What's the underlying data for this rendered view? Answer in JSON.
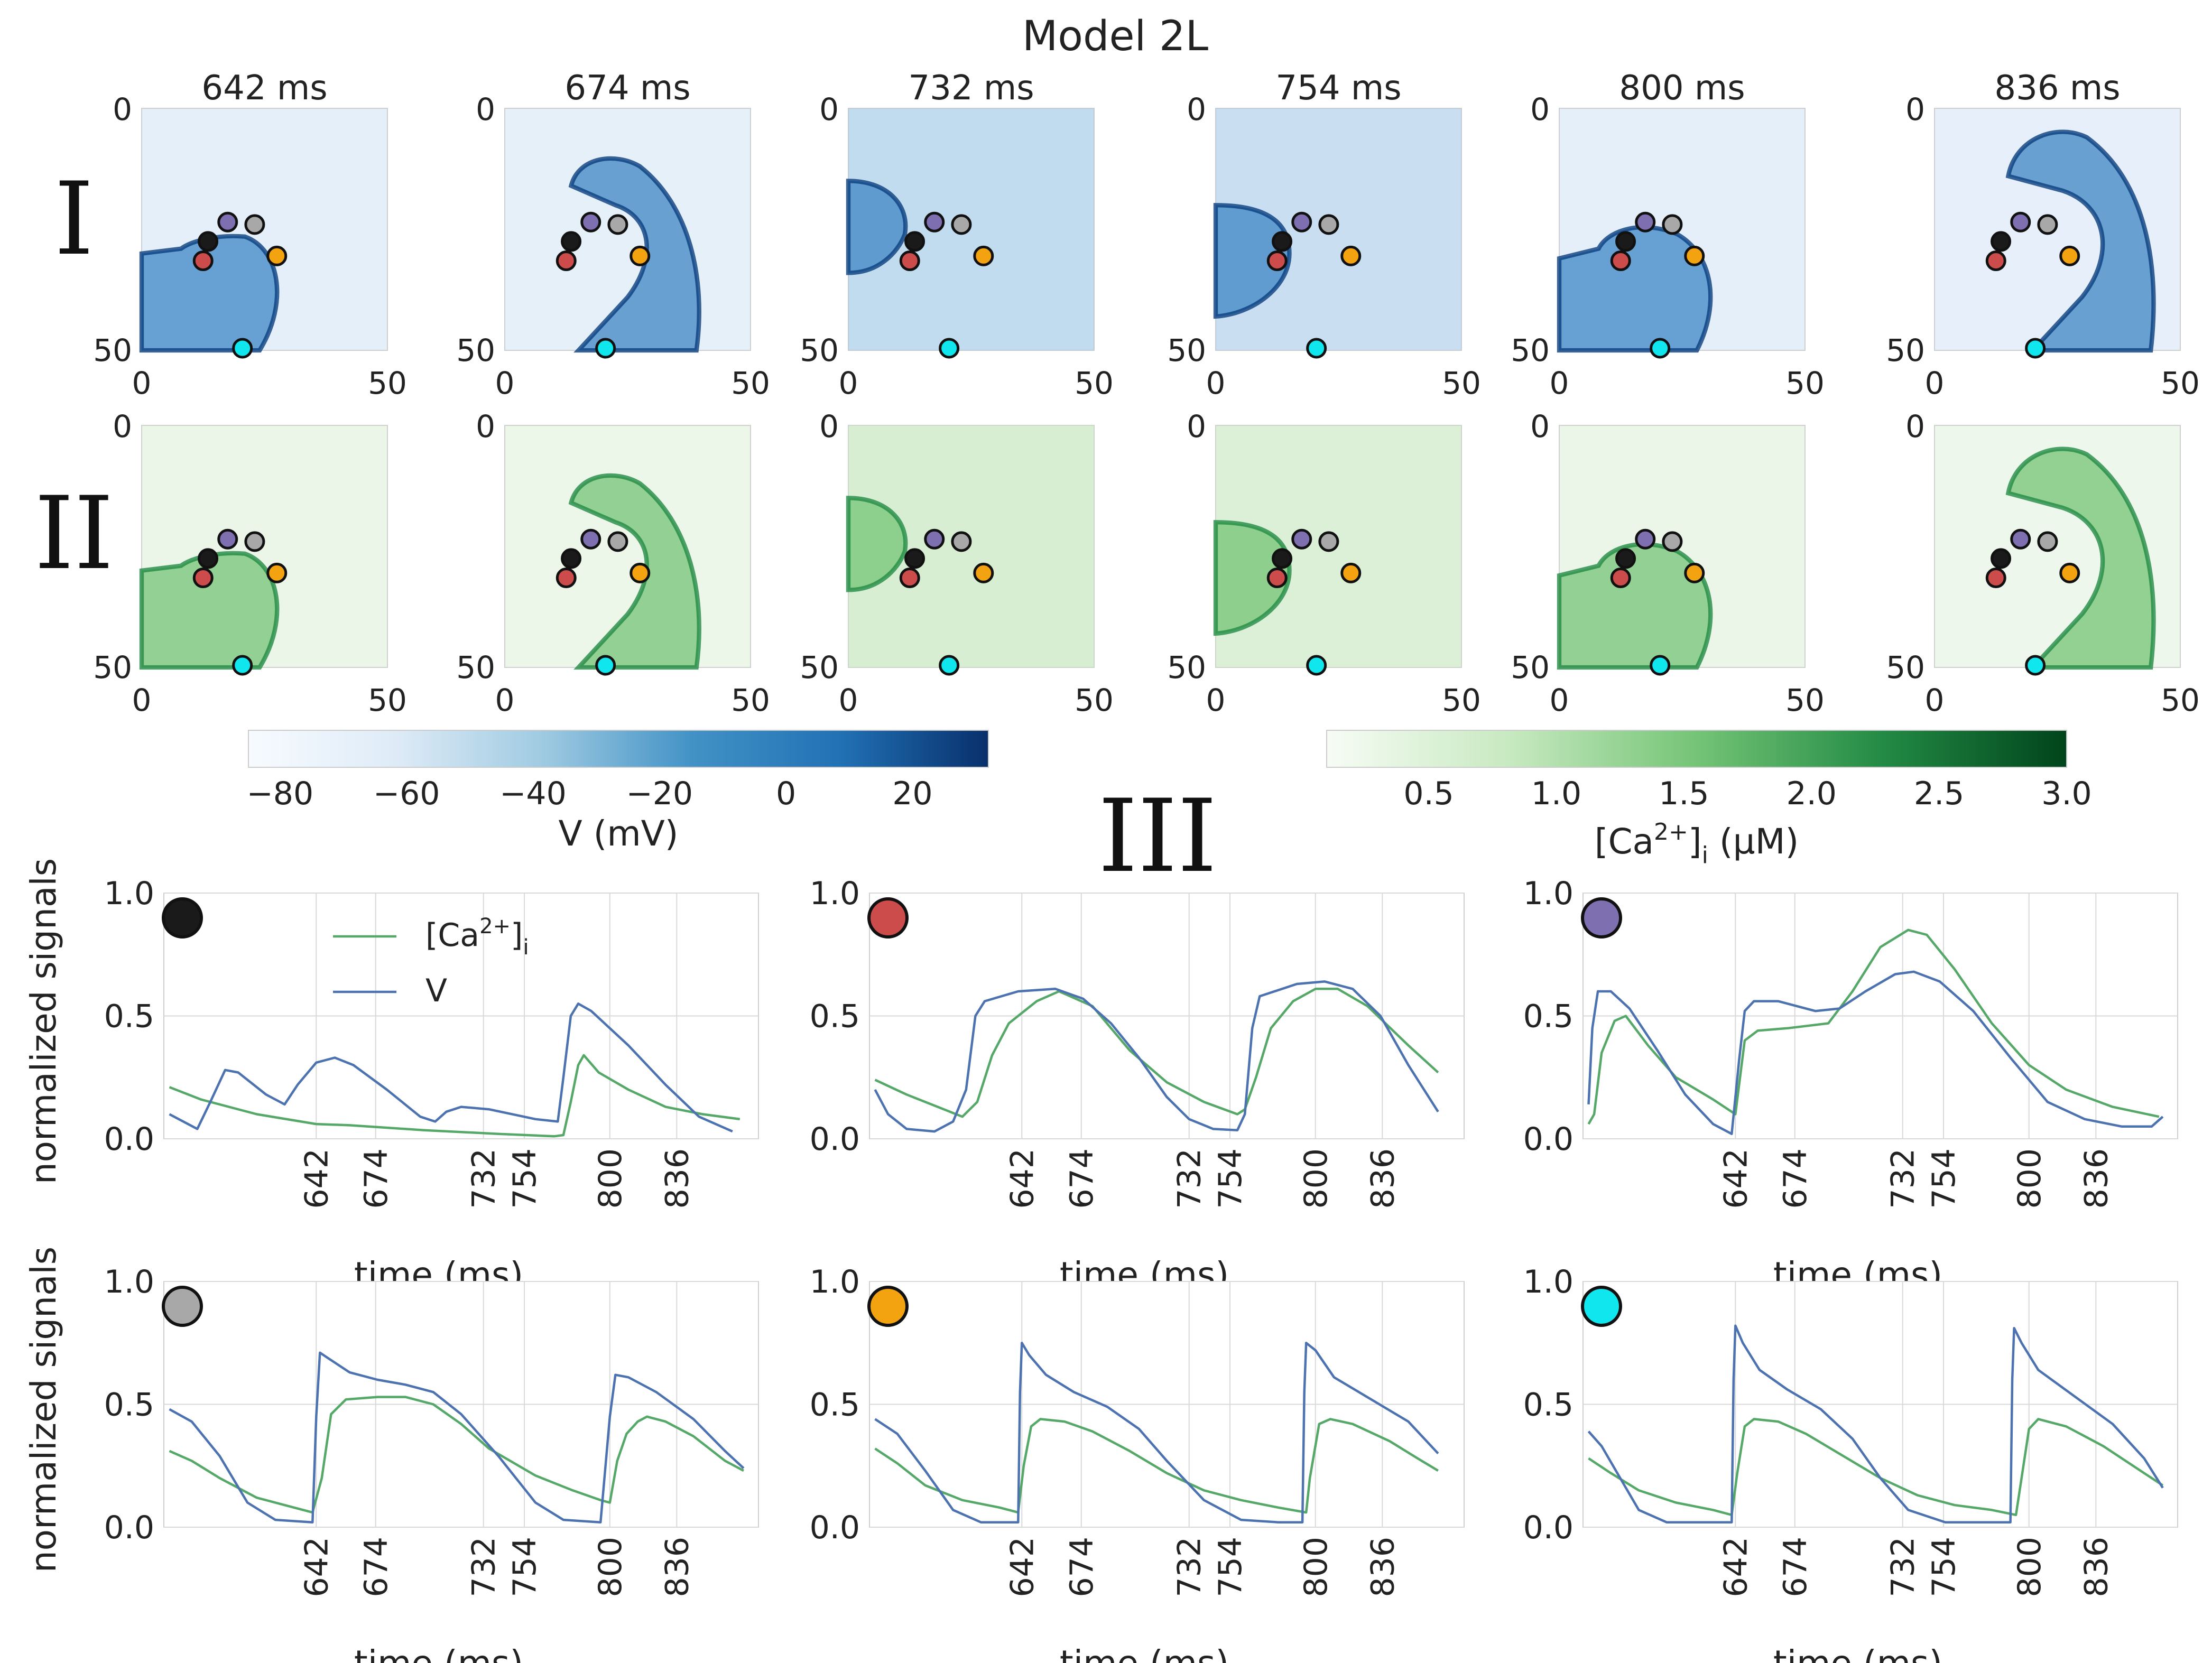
{
  "figure_title": "Model 2L",
  "row_labels": [
    "I",
    "II"
  ],
  "section3_label": "III",
  "snapshot_times": [
    "642 ms",
    "674 ms",
    "732 ms",
    "754 ms",
    "800 ms",
    "836 ms"
  ],
  "map_axis_ticks": [
    "0",
    "50"
  ],
  "colorbars": {
    "voltage": {
      "label": "V (mV)",
      "ticks": [
        "−80",
        "−60",
        "−40",
        "−20",
        "0",
        "20"
      ],
      "tick_values": [
        -80,
        -60,
        -40,
        -20,
        0,
        20
      ],
      "range": [
        -85,
        32
      ],
      "cmap": "Blues"
    },
    "calcium": {
      "label_main": "[Ca",
      "label_sup": "2+",
      "label_close": "]",
      "label_sub": "i",
      "label_unit": " (μM)",
      "ticks": [
        "0.5",
        "1.0",
        "1.5",
        "2.0",
        "2.5",
        "3.0"
      ],
      "tick_values": [
        0.5,
        1.0,
        1.5,
        2.0,
        2.5,
        3.0
      ],
      "range": [
        0.1,
        3.0
      ],
      "cmap": "Greens"
    }
  },
  "probe_colors": {
    "black": "#1a1a1a",
    "red": "#cc4c4c",
    "purple": "#7e6fb0",
    "grey": "#a8a8a8",
    "orange": "#f2a30f",
    "cyan": "#10e6ee"
  },
  "colors": {
    "ca": "#55a868",
    "v": "#4c72b0"
  },
  "legend": {
    "ca_main": "[Ca",
    "ca_sup": "2+",
    "ca_close": "]",
    "ca_sub": "i",
    "v": "V"
  },
  "trace_axes": {
    "ylabel": "normalized signals",
    "xlabel": "time (ms)",
    "yticks": [
      "0.0",
      "0.5",
      "1.0"
    ],
    "xticks": [
      "642",
      "674",
      "732",
      "754",
      "800",
      "836"
    ]
  },
  "chart_data": {
    "type": "line",
    "x_domain_ms": [
      560,
      880
    ],
    "ylim": [
      0,
      1
    ],
    "xticks": [
      642,
      674,
      732,
      754,
      800,
      836
    ],
    "panels": [
      {
        "probe": "black",
        "ca": [
          [
            563,
            0.21
          ],
          [
            580,
            0.16
          ],
          [
            610,
            0.1
          ],
          [
            642,
            0.06
          ],
          [
            660,
            0.055
          ],
          [
            700,
            0.035
          ],
          [
            740,
            0.02
          ],
          [
            770,
            0.01
          ],
          [
            775,
            0.015
          ],
          [
            779,
            0.15
          ],
          [
            783,
            0.3
          ],
          [
            786,
            0.34
          ],
          [
            794,
            0.27
          ],
          [
            810,
            0.2
          ],
          [
            830,
            0.13
          ],
          [
            850,
            0.1
          ],
          [
            870,
            0.08
          ]
        ],
        "v": [
          [
            563,
            0.1
          ],
          [
            578,
            0.04
          ],
          [
            585,
            0.15
          ],
          [
            593,
            0.28
          ],
          [
            600,
            0.27
          ],
          [
            615,
            0.18
          ],
          [
            625,
            0.14
          ],
          [
            632,
            0.22
          ],
          [
            642,
            0.31
          ],
          [
            652,
            0.33
          ],
          [
            662,
            0.3
          ],
          [
            680,
            0.2
          ],
          [
            698,
            0.09
          ],
          [
            706,
            0.07
          ],
          [
            712,
            0.11
          ],
          [
            720,
            0.13
          ],
          [
            735,
            0.12
          ],
          [
            760,
            0.08
          ],
          [
            772,
            0.07
          ],
          [
            775,
            0.25
          ],
          [
            779,
            0.5
          ],
          [
            783,
            0.55
          ],
          [
            790,
            0.52
          ],
          [
            810,
            0.38
          ],
          [
            830,
            0.22
          ],
          [
            848,
            0.09
          ],
          [
            866,
            0.03
          ]
        ]
      },
      {
        "probe": "red",
        "ca": [
          [
            563,
            0.24
          ],
          [
            580,
            0.18
          ],
          [
            600,
            0.12
          ],
          [
            610,
            0.09
          ],
          [
            618,
            0.15
          ],
          [
            626,
            0.34
          ],
          [
            635,
            0.47
          ],
          [
            650,
            0.56
          ],
          [
            662,
            0.6
          ],
          [
            680,
            0.54
          ],
          [
            700,
            0.36
          ],
          [
            720,
            0.23
          ],
          [
            740,
            0.15
          ],
          [
            758,
            0.1
          ],
          [
            762,
            0.12
          ],
          [
            768,
            0.25
          ],
          [
            776,
            0.45
          ],
          [
            788,
            0.56
          ],
          [
            800,
            0.61
          ],
          [
            812,
            0.61
          ],
          [
            828,
            0.54
          ],
          [
            850,
            0.38
          ],
          [
            866,
            0.27
          ]
        ],
        "v": [
          [
            563,
            0.2
          ],
          [
            570,
            0.1
          ],
          [
            580,
            0.04
          ],
          [
            595,
            0.03
          ],
          [
            605,
            0.07
          ],
          [
            612,
            0.2
          ],
          [
            617,
            0.5
          ],
          [
            622,
            0.56
          ],
          [
            640,
            0.6
          ],
          [
            660,
            0.61
          ],
          [
            675,
            0.57
          ],
          [
            690,
            0.47
          ],
          [
            705,
            0.33
          ],
          [
            720,
            0.17
          ],
          [
            732,
            0.08
          ],
          [
            745,
            0.04
          ],
          [
            758,
            0.035
          ],
          [
            762,
            0.1
          ],
          [
            766,
            0.45
          ],
          [
            770,
            0.58
          ],
          [
            790,
            0.63
          ],
          [
            805,
            0.64
          ],
          [
            820,
            0.61
          ],
          [
            835,
            0.5
          ],
          [
            850,
            0.3
          ],
          [
            866,
            0.11
          ]
        ]
      },
      {
        "probe": "purple",
        "ca": [
          [
            563,
            0.06
          ],
          [
            566,
            0.1
          ],
          [
            570,
            0.35
          ],
          [
            577,
            0.48
          ],
          [
            583,
            0.5
          ],
          [
            595,
            0.38
          ],
          [
            610,
            0.25
          ],
          [
            630,
            0.16
          ],
          [
            642,
            0.1
          ],
          [
            647,
            0.4
          ],
          [
            654,
            0.44
          ],
          [
            670,
            0.45
          ],
          [
            692,
            0.47
          ],
          [
            705,
            0.6
          ],
          [
            720,
            0.78
          ],
          [
            735,
            0.85
          ],
          [
            745,
            0.83
          ],
          [
            760,
            0.69
          ],
          [
            780,
            0.47
          ],
          [
            800,
            0.3
          ],
          [
            820,
            0.2
          ],
          [
            845,
            0.13
          ],
          [
            870,
            0.09
          ]
        ],
        "v": [
          [
            563,
            0.14
          ],
          [
            565,
            0.45
          ],
          [
            568,
            0.6
          ],
          [
            575,
            0.6
          ],
          [
            585,
            0.53
          ],
          [
            600,
            0.36
          ],
          [
            615,
            0.18
          ],
          [
            630,
            0.06
          ],
          [
            640,
            0.02
          ],
          [
            644,
            0.32
          ],
          [
            647,
            0.52
          ],
          [
            652,
            0.56
          ],
          [
            665,
            0.56
          ],
          [
            685,
            0.52
          ],
          [
            698,
            0.53
          ],
          [
            712,
            0.6
          ],
          [
            728,
            0.67
          ],
          [
            738,
            0.68
          ],
          [
            752,
            0.64
          ],
          [
            770,
            0.52
          ],
          [
            790,
            0.33
          ],
          [
            810,
            0.15
          ],
          [
            830,
            0.08
          ],
          [
            850,
            0.05
          ],
          [
            866,
            0.05
          ],
          [
            872,
            0.09
          ]
        ]
      },
      {
        "probe": "grey",
        "ca": [
          [
            563,
            0.31
          ],
          [
            575,
            0.27
          ],
          [
            590,
            0.2
          ],
          [
            610,
            0.12
          ],
          [
            630,
            0.08
          ],
          [
            640,
            0.06
          ],
          [
            645,
            0.2
          ],
          [
            650,
            0.46
          ],
          [
            658,
            0.52
          ],
          [
            675,
            0.53
          ],
          [
            690,
            0.53
          ],
          [
            705,
            0.5
          ],
          [
            720,
            0.42
          ],
          [
            735,
            0.32
          ],
          [
            760,
            0.21
          ],
          [
            780,
            0.15
          ],
          [
            795,
            0.11
          ],
          [
            800,
            0.1
          ],
          [
            804,
            0.27
          ],
          [
            809,
            0.38
          ],
          [
            815,
            0.43
          ],
          [
            820,
            0.45
          ],
          [
            830,
            0.43
          ],
          [
            845,
            0.37
          ],
          [
            862,
            0.27
          ],
          [
            872,
            0.23
          ]
        ],
        "v": [
          [
            563,
            0.48
          ],
          [
            575,
            0.43
          ],
          [
            590,
            0.29
          ],
          [
            605,
            0.1
          ],
          [
            620,
            0.03
          ],
          [
            640,
            0.02
          ],
          [
            642,
            0.45
          ],
          [
            644,
            0.71
          ],
          [
            648,
            0.69
          ],
          [
            660,
            0.63
          ],
          [
            675,
            0.6
          ],
          [
            690,
            0.58
          ],
          [
            705,
            0.55
          ],
          [
            720,
            0.46
          ],
          [
            740,
            0.29
          ],
          [
            760,
            0.1
          ],
          [
            775,
            0.03
          ],
          [
            795,
            0.02
          ],
          [
            800,
            0.45
          ],
          [
            803,
            0.62
          ],
          [
            810,
            0.61
          ],
          [
            825,
            0.55
          ],
          [
            845,
            0.44
          ],
          [
            862,
            0.31
          ],
          [
            872,
            0.24
          ]
        ]
      },
      {
        "probe": "orange",
        "ca": [
          [
            563,
            0.32
          ],
          [
            575,
            0.26
          ],
          [
            590,
            0.17
          ],
          [
            610,
            0.11
          ],
          [
            630,
            0.08
          ],
          [
            640,
            0.06
          ],
          [
            643,
            0.25
          ],
          [
            647,
            0.41
          ],
          [
            652,
            0.44
          ],
          [
            665,
            0.43
          ],
          [
            680,
            0.39
          ],
          [
            700,
            0.31
          ],
          [
            720,
            0.22
          ],
          [
            740,
            0.15
          ],
          [
            760,
            0.11
          ],
          [
            780,
            0.08
          ],
          [
            795,
            0.06
          ],
          [
            797,
            0.2
          ],
          [
            802,
            0.42
          ],
          [
            808,
            0.44
          ],
          [
            820,
            0.42
          ],
          [
            840,
            0.35
          ],
          [
            855,
            0.28
          ],
          [
            866,
            0.23
          ]
        ],
        "v": [
          [
            563,
            0.44
          ],
          [
            575,
            0.38
          ],
          [
            590,
            0.23
          ],
          [
            605,
            0.07
          ],
          [
            620,
            0.02
          ],
          [
            640,
            0.02
          ],
          [
            641,
            0.55
          ],
          [
            642,
            0.75
          ],
          [
            646,
            0.7
          ],
          [
            655,
            0.62
          ],
          [
            670,
            0.55
          ],
          [
            688,
            0.49
          ],
          [
            705,
            0.4
          ],
          [
            720,
            0.27
          ],
          [
            740,
            0.11
          ],
          [
            760,
            0.03
          ],
          [
            780,
            0.02
          ],
          [
            793,
            0.02
          ],
          [
            794,
            0.55
          ],
          [
            795,
            0.75
          ],
          [
            800,
            0.72
          ],
          [
            810,
            0.61
          ],
          [
            830,
            0.52
          ],
          [
            850,
            0.43
          ],
          [
            866,
            0.3
          ]
        ]
      },
      {
        "probe": "cyan",
        "ca": [
          [
            563,
            0.28
          ],
          [
            575,
            0.22
          ],
          [
            590,
            0.15
          ],
          [
            610,
            0.1
          ],
          [
            630,
            0.07
          ],
          [
            640,
            0.05
          ],
          [
            643,
            0.22
          ],
          [
            647,
            0.41
          ],
          [
            652,
            0.44
          ],
          [
            665,
            0.43
          ],
          [
            680,
            0.38
          ],
          [
            700,
            0.29
          ],
          [
            720,
            0.2
          ],
          [
            740,
            0.13
          ],
          [
            760,
            0.09
          ],
          [
            780,
            0.07
          ],
          [
            793,
            0.05
          ],
          [
            796,
            0.2
          ],
          [
            800,
            0.4
          ],
          [
            805,
            0.44
          ],
          [
            820,
            0.41
          ],
          [
            840,
            0.33
          ],
          [
            860,
            0.23
          ],
          [
            872,
            0.17
          ]
        ],
        "v": [
          [
            563,
            0.39
          ],
          [
            570,
            0.33
          ],
          [
            580,
            0.2
          ],
          [
            590,
            0.07
          ],
          [
            605,
            0.02
          ],
          [
            640,
            0.02
          ],
          [
            641,
            0.6
          ],
          [
            642,
            0.82
          ],
          [
            646,
            0.75
          ],
          [
            655,
            0.64
          ],
          [
            670,
            0.56
          ],
          [
            688,
            0.48
          ],
          [
            705,
            0.36
          ],
          [
            720,
            0.2
          ],
          [
            735,
            0.07
          ],
          [
            755,
            0.02
          ],
          [
            790,
            0.02
          ],
          [
            791,
            0.6
          ],
          [
            792,
            0.81
          ],
          [
            796,
            0.75
          ],
          [
            805,
            0.64
          ],
          [
            825,
            0.53
          ],
          [
            845,
            0.42
          ],
          [
            862,
            0.28
          ],
          [
            872,
            0.16
          ]
        ]
      }
    ]
  }
}
